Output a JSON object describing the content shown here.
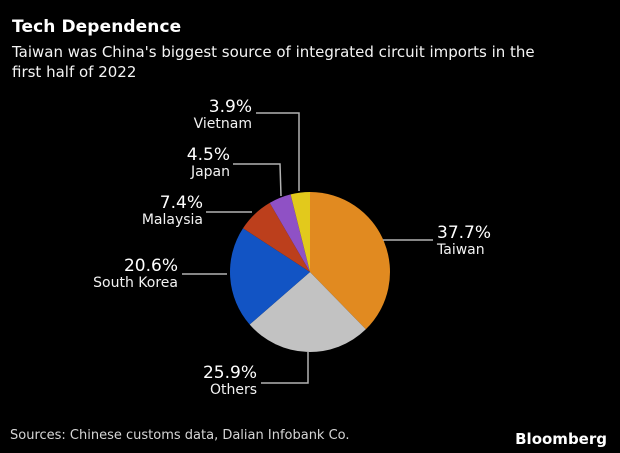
{
  "header": {
    "title": "Tech Dependence",
    "subtitle": "Taiwan was China's biggest source of integrated circuit imports in the first half of 2022"
  },
  "footer": {
    "sources": "Sources: Chinese customs data, Dalian Infobank Co.",
    "brand": "Bloomberg"
  },
  "colors": {
    "background": "#000000",
    "text": "#ffffff",
    "muted_text": "#d6d6d6",
    "leader_line": "#b3b3b3"
  },
  "chart_data": {
    "type": "pie",
    "title": "Tech Dependence",
    "subtitle": "Taiwan was China's biggest source of integrated circuit imports in the first half of 2022",
    "unit": "%",
    "start_angle_deg": 0,
    "direction": "clockwise",
    "legend_position": "callout-labels",
    "slices": [
      {
        "name": "Taiwan",
        "value": 37.7,
        "label": "37.7%",
        "color": "#E18A20"
      },
      {
        "name": "Others",
        "value": 25.9,
        "label": "25.9%",
        "color": "#C2C2C2"
      },
      {
        "name": "South Korea",
        "value": 20.6,
        "label": "20.6%",
        "color": "#1254C4"
      },
      {
        "name": "Malaysia",
        "value": 7.4,
        "label": "7.4%",
        "color": "#BC3F1C"
      },
      {
        "name": "Japan",
        "value": 4.5,
        "label": "4.5%",
        "color": "#8F51C5"
      },
      {
        "name": "Vietnam",
        "value": 3.9,
        "label": "3.9%",
        "color": "#E2C91C"
      }
    ]
  }
}
